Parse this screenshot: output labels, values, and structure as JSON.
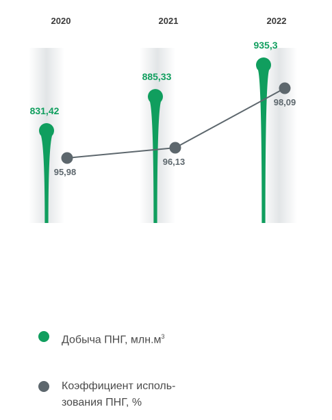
{
  "chart_data": {
    "type": "line",
    "categories": [
      "2020",
      "2021",
      "2022"
    ],
    "series": [
      {
        "name": "Добыча ПНГ, млн.м³",
        "values": [
          831.42,
          885.33,
          935.3
        ],
        "labels": [
          "831,42",
          "885,33",
          "935,3"
        ],
        "color": "#109e5e"
      },
      {
        "name": "Коэффициент использования ПНГ, %",
        "values": [
          95.98,
          96.13,
          98.09
        ],
        "labels": [
          "95,98",
          "96,13",
          "98,09"
        ],
        "color": "#5d676d"
      }
    ],
    "grid": false,
    "legend": "bottom"
  },
  "legend": {
    "item1": {
      "text": "Добыча ПНГ, млн.м",
      "sup": "3"
    },
    "item2": {
      "line1": "Коэффициент исполь-",
      "line2": "зования ПНГ, %"
    }
  }
}
